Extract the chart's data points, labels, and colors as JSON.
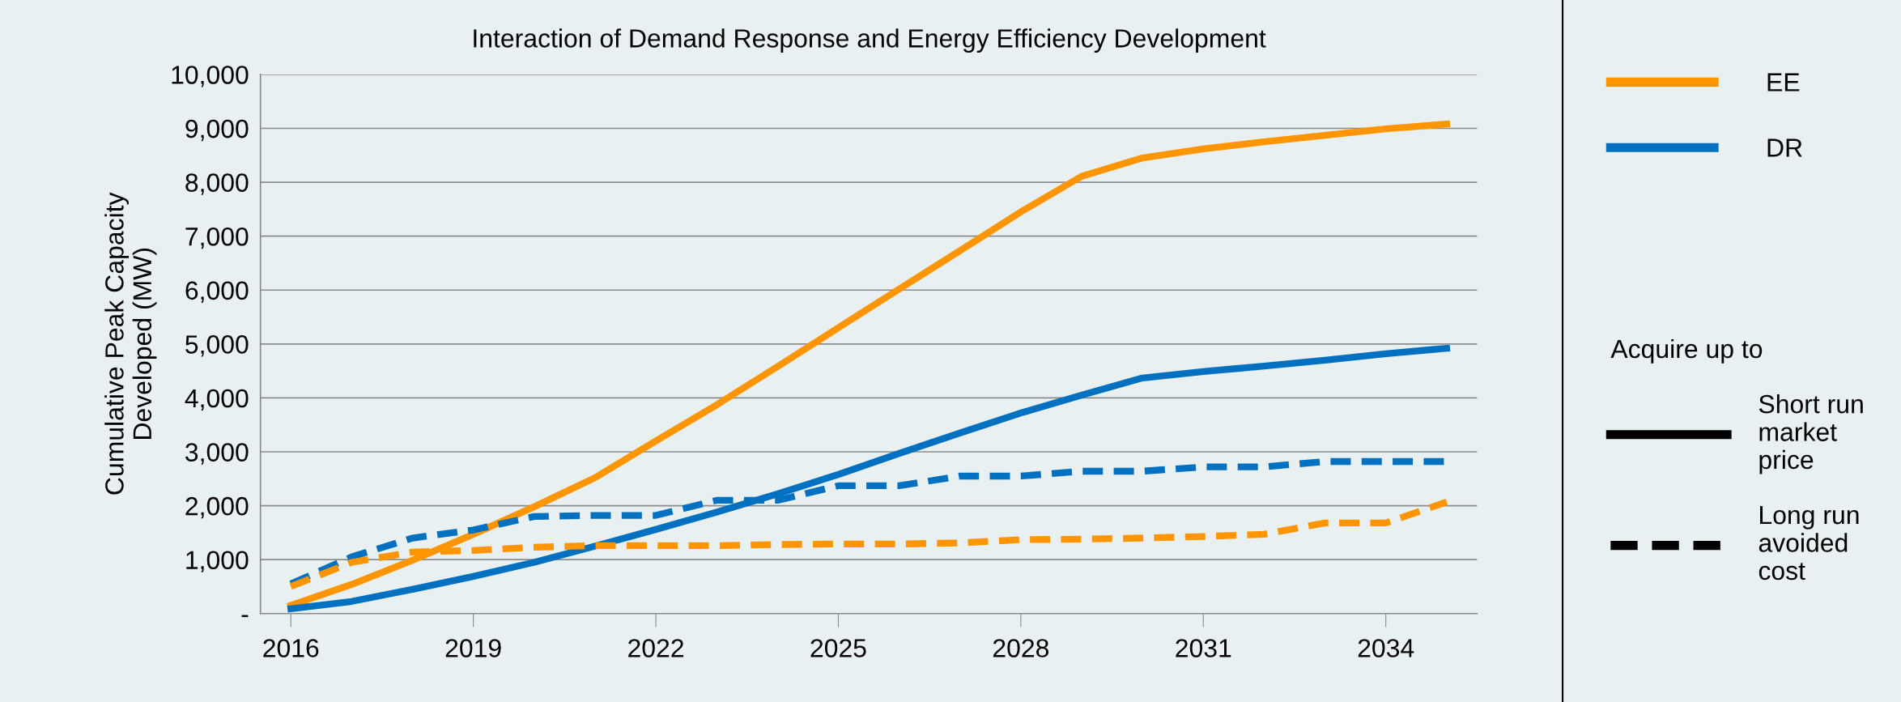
{
  "chart_data": {
    "type": "line",
    "title": "Interaction of Demand Response and Energy Efficiency Development",
    "ylabel": "Cumulative Peak Capacity\nDeveloped (MW)",
    "x": [
      2016,
      2017,
      2018,
      2019,
      2020,
      2021,
      2022,
      2023,
      2024,
      2025,
      2026,
      2027,
      2028,
      2029,
      2030,
      2031,
      2032,
      2033,
      2034,
      2035
    ],
    "series": [
      {
        "name": "EE",
        "color": "#ff9500",
        "line_style": "solid",
        "values": [
          150,
          540,
          990,
          1470,
          1980,
          2520,
          3200,
          3870,
          4580,
          5300,
          6020,
          6730,
          7450,
          8110,
          8450,
          8620,
          8750,
          8870,
          8990,
          9080
        ]
      },
      {
        "name": "DR",
        "color": "#0070c0",
        "line_style": "solid",
        "values": [
          90,
          225,
          450,
          690,
          950,
          1250,
          1560,
          1880,
          2220,
          2580,
          2970,
          3350,
          3720,
          4050,
          4370,
          4490,
          4590,
          4700,
          4820,
          4920
        ]
      },
      {
        "color": "#0070c0",
        "line_style": "dashed",
        "values": [
          550,
          1050,
          1400,
          1550,
          1800,
          1820,
          1820,
          2100,
          2100,
          2370,
          2370,
          2550,
          2550,
          2640,
          2640,
          2720,
          2720,
          2820,
          2820,
          2820
        ]
      },
      {
        "color": "#ff9500",
        "line_style": "dashed",
        "values": [
          500,
          950,
          1140,
          1170,
          1230,
          1260,
          1260,
          1260,
          1280,
          1290,
          1290,
          1310,
          1370,
          1380,
          1400,
          1430,
          1470,
          1680,
          1680,
          2070
        ]
      }
    ],
    "legend_title": "Acquire up to",
    "annotations": [
      "Short run\nmarket\nprice",
      "Long run\navoided\ncost"
    ],
    "legend": "right",
    "xlim": [
      2015.5,
      2035.5
    ],
    "xticks": [
      2016,
      2019,
      2022,
      2025,
      2028,
      2031,
      2034
    ],
    "ylim": [
      0,
      10000
    ],
    "yticks": [
      {
        "value": 0,
        "label": "-"
      },
      {
        "value": 1000,
        "label": "1,000"
      },
      {
        "value": 2000,
        "label": "2,000"
      },
      {
        "value": 3000,
        "label": "3,000"
      },
      {
        "value": 4000,
        "label": "4,000"
      },
      {
        "value": 5000,
        "label": "5,000"
      },
      {
        "value": 6000,
        "label": "6,000"
      },
      {
        "value": 7000,
        "label": "7,000"
      },
      {
        "value": 8000,
        "label": "8,000"
      },
      {
        "value": 9000,
        "label": "9,000"
      },
      {
        "value": 10000,
        "label": "10,000"
      }
    ],
    "grid": "y"
  }
}
